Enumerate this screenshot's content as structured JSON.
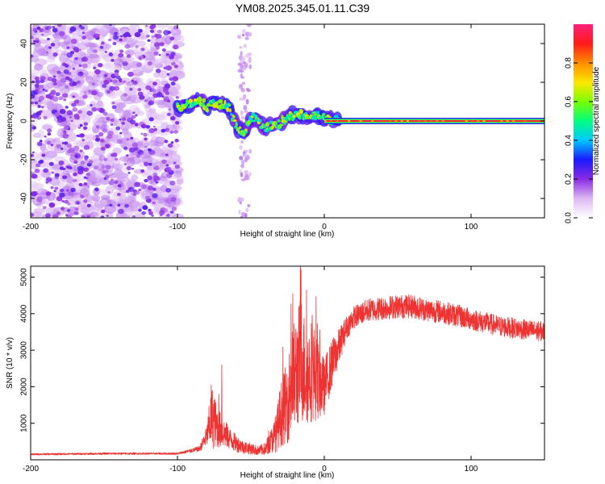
{
  "title": "YM08.2025.345.01.11.C39",
  "chart_data": [
    {
      "type": "heatmap",
      "title": "YM08.2025.345.01.11.C39",
      "xlabel": "Height of straight line (km)",
      "ylabel": "Frequency (Hz)",
      "xlim": [
        -200,
        150
      ],
      "ylim": [
        -50,
        50
      ],
      "xticks": [
        "-200",
        "-100",
        "0",
        "100"
      ],
      "yticks": [
        "40",
        "20",
        "0",
        "-20",
        "-40"
      ],
      "colorbar": {
        "label": "Normalized spectral amplitude",
        "range": [
          0,
          1
        ],
        "ticks": [
          "0.0",
          "0.2",
          "0.4",
          "0.6",
          "0.8"
        ],
        "colors": [
          "#ffffff",
          "#ddb8f5",
          "#8a2be2",
          "#1a1aff",
          "#00c8ff",
          "#00ff80",
          "#7aff00",
          "#ffe600",
          "#ff8c00",
          "#ff1a1a",
          "#ff1f7a"
        ]
      },
      "regions": [
        {
          "name": "broadband noise",
          "x": [
            -200,
            -100
          ],
          "y": [
            -50,
            50
          ],
          "amplitude": 0.15
        },
        {
          "name": "noise strip",
          "x": [
            -58,
            -50
          ],
          "y": [
            -50,
            50
          ],
          "amplitude": 0.08
        },
        {
          "name": "signal onset",
          "x": [
            -100,
            -60
          ],
          "y": [
            0,
            15
          ],
          "amplitude": 0.35
        },
        {
          "name": "tone",
          "x": [
            0,
            150
          ],
          "y": [
            0,
            0
          ],
          "amplitude": 0.95
        }
      ]
    },
    {
      "type": "line",
      "xlabel": "Height of straight line (km)",
      "ylabel": "SNR (10 * v/v)",
      "xlim": [
        -200,
        150
      ],
      "ylim": [
        0,
        5300
      ],
      "xticks": [
        "-200",
        "-100",
        "0",
        "100"
      ],
      "yticks": [
        "5000",
        "4000",
        "3000",
        "2000",
        "1000"
      ],
      "color": "#ee3333",
      "series": [
        {
          "name": "SNR",
          "x": [
            -200,
            -150,
            -100,
            -85,
            -80,
            -77,
            -73,
            -70,
            -65,
            -60,
            -55,
            -50,
            -45,
            -40,
            -33,
            -30,
            -25,
            -22,
            -18,
            -16,
            -12,
            -8,
            -5,
            0,
            5,
            10,
            15,
            20,
            30,
            40,
            50,
            60,
            70,
            80,
            90,
            100,
            110,
            120,
            130,
            140,
            150
          ],
          "values": [
            150,
            170,
            170,
            300,
            650,
            1200,
            900,
            800,
            600,
            450,
            350,
            300,
            250,
            300,
            700,
            1200,
            1600,
            2100,
            2500,
            2800,
            2300,
            2500,
            2200,
            2000,
            2600,
            3100,
            3600,
            3900,
            4100,
            4150,
            4200,
            4200,
            4100,
            4050,
            3950,
            3850,
            3750,
            3650,
            3600,
            3550,
            3500
          ],
          "spike_values": [
            1800,
            2600,
            2200,
            3500,
            5200,
            2800,
            2200
          ],
          "noise_amplitude": [
            0.12,
            0.12,
            0.12,
            0.2,
            0.35,
            0.6,
            0.5,
            0.45,
            0.4,
            0.4,
            0.4,
            0.4,
            0.4,
            0.45,
            0.55,
            0.55,
            0.55,
            0.55,
            0.5,
            0.5,
            0.45,
            0.45,
            0.4,
            0.3,
            0.2,
            0.12,
            0.07,
            0.06,
            0.06,
            0.06,
            0.06,
            0.06,
            0.06,
            0.06,
            0.06,
            0.06,
            0.06,
            0.06,
            0.06,
            0.06,
            0.06
          ]
        }
      ]
    }
  ]
}
